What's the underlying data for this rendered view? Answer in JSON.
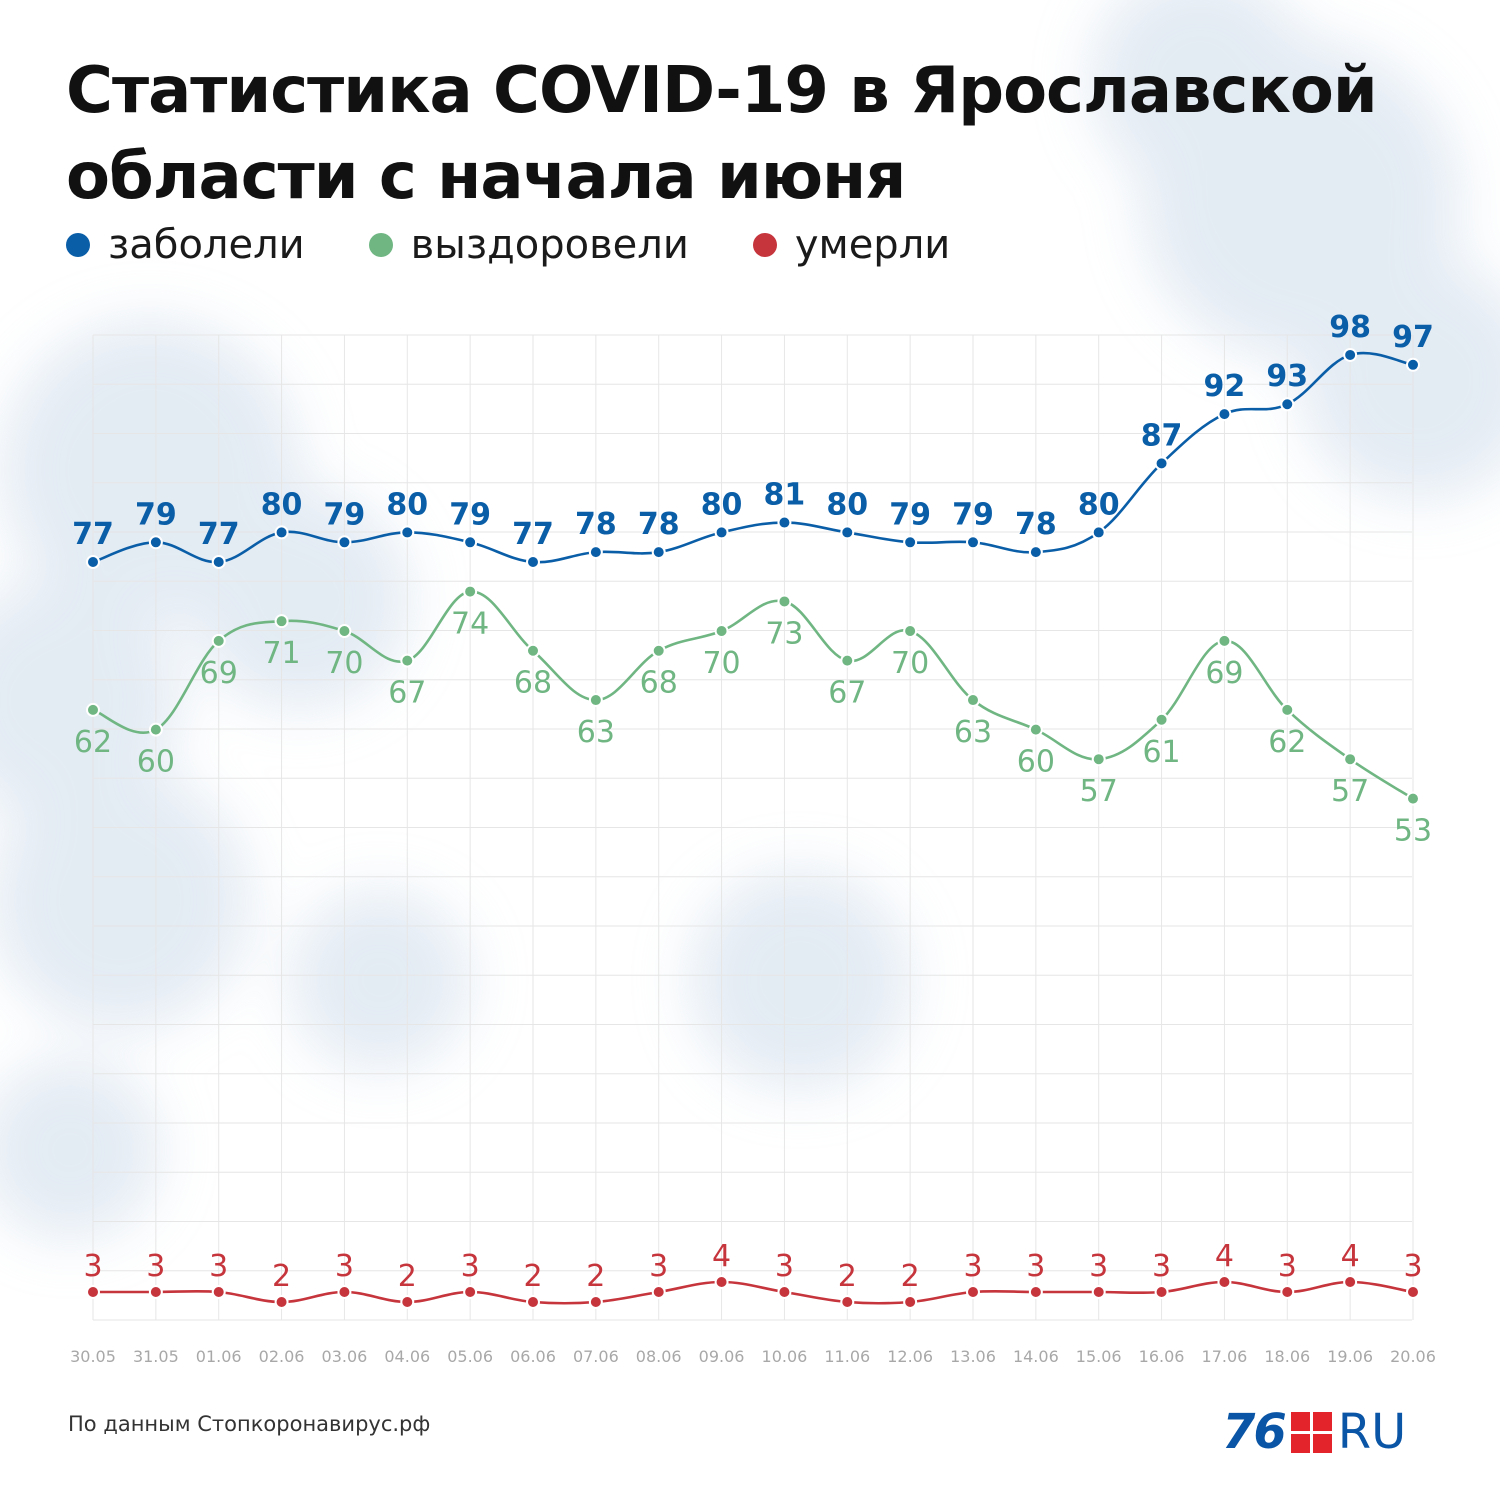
{
  "title": "Статистика COVID-19 в Ярославской области с начала июня",
  "source": "По данным Стопкоронавирус.рф",
  "logo": {
    "number": "76",
    "suffix": "RU"
  },
  "colors": {
    "sick": "#0a5ea8",
    "recovered": "#6fb683",
    "died": "#c6343c",
    "logo": "#0a55a5",
    "logo_mark": "#e3242b"
  },
  "chart_data": {
    "type": "line",
    "title": "Статистика COVID-19 в Ярославской области с начала июня",
    "legend_position": "top-left",
    "grid": true,
    "x": [
      "30.05",
      "31.05",
      "01.06",
      "02.06",
      "03.06",
      "04.06",
      "05.06",
      "06.06",
      "07.06",
      "08.06",
      "09.06",
      "10.06",
      "11.06",
      "12.06",
      "13.06",
      "14.06",
      "15.06",
      "16.06",
      "17.06",
      "18.06",
      "19.06",
      "20.06"
    ],
    "series": [
      {
        "name": "заболели",
        "color": "#0a5ea8",
        "values": [
          77,
          79,
          77,
          80,
          79,
          80,
          79,
          77,
          78,
          78,
          80,
          81,
          80,
          79,
          79,
          78,
          80,
          87,
          92,
          93,
          98,
          97
        ]
      },
      {
        "name": "выздоровели",
        "color": "#6fb683",
        "values": [
          62,
          60,
          69,
          71,
          70,
          67,
          74,
          68,
          63,
          68,
          70,
          73,
          67,
          70,
          63,
          60,
          57,
          61,
          69,
          62,
          57,
          53
        ]
      },
      {
        "name": "умерли",
        "color": "#c6343c",
        "values": [
          3,
          3,
          3,
          2,
          3,
          2,
          3,
          2,
          2,
          3,
          4,
          3,
          2,
          2,
          3,
          3,
          3,
          3,
          4,
          3,
          4,
          3
        ]
      }
    ]
  }
}
